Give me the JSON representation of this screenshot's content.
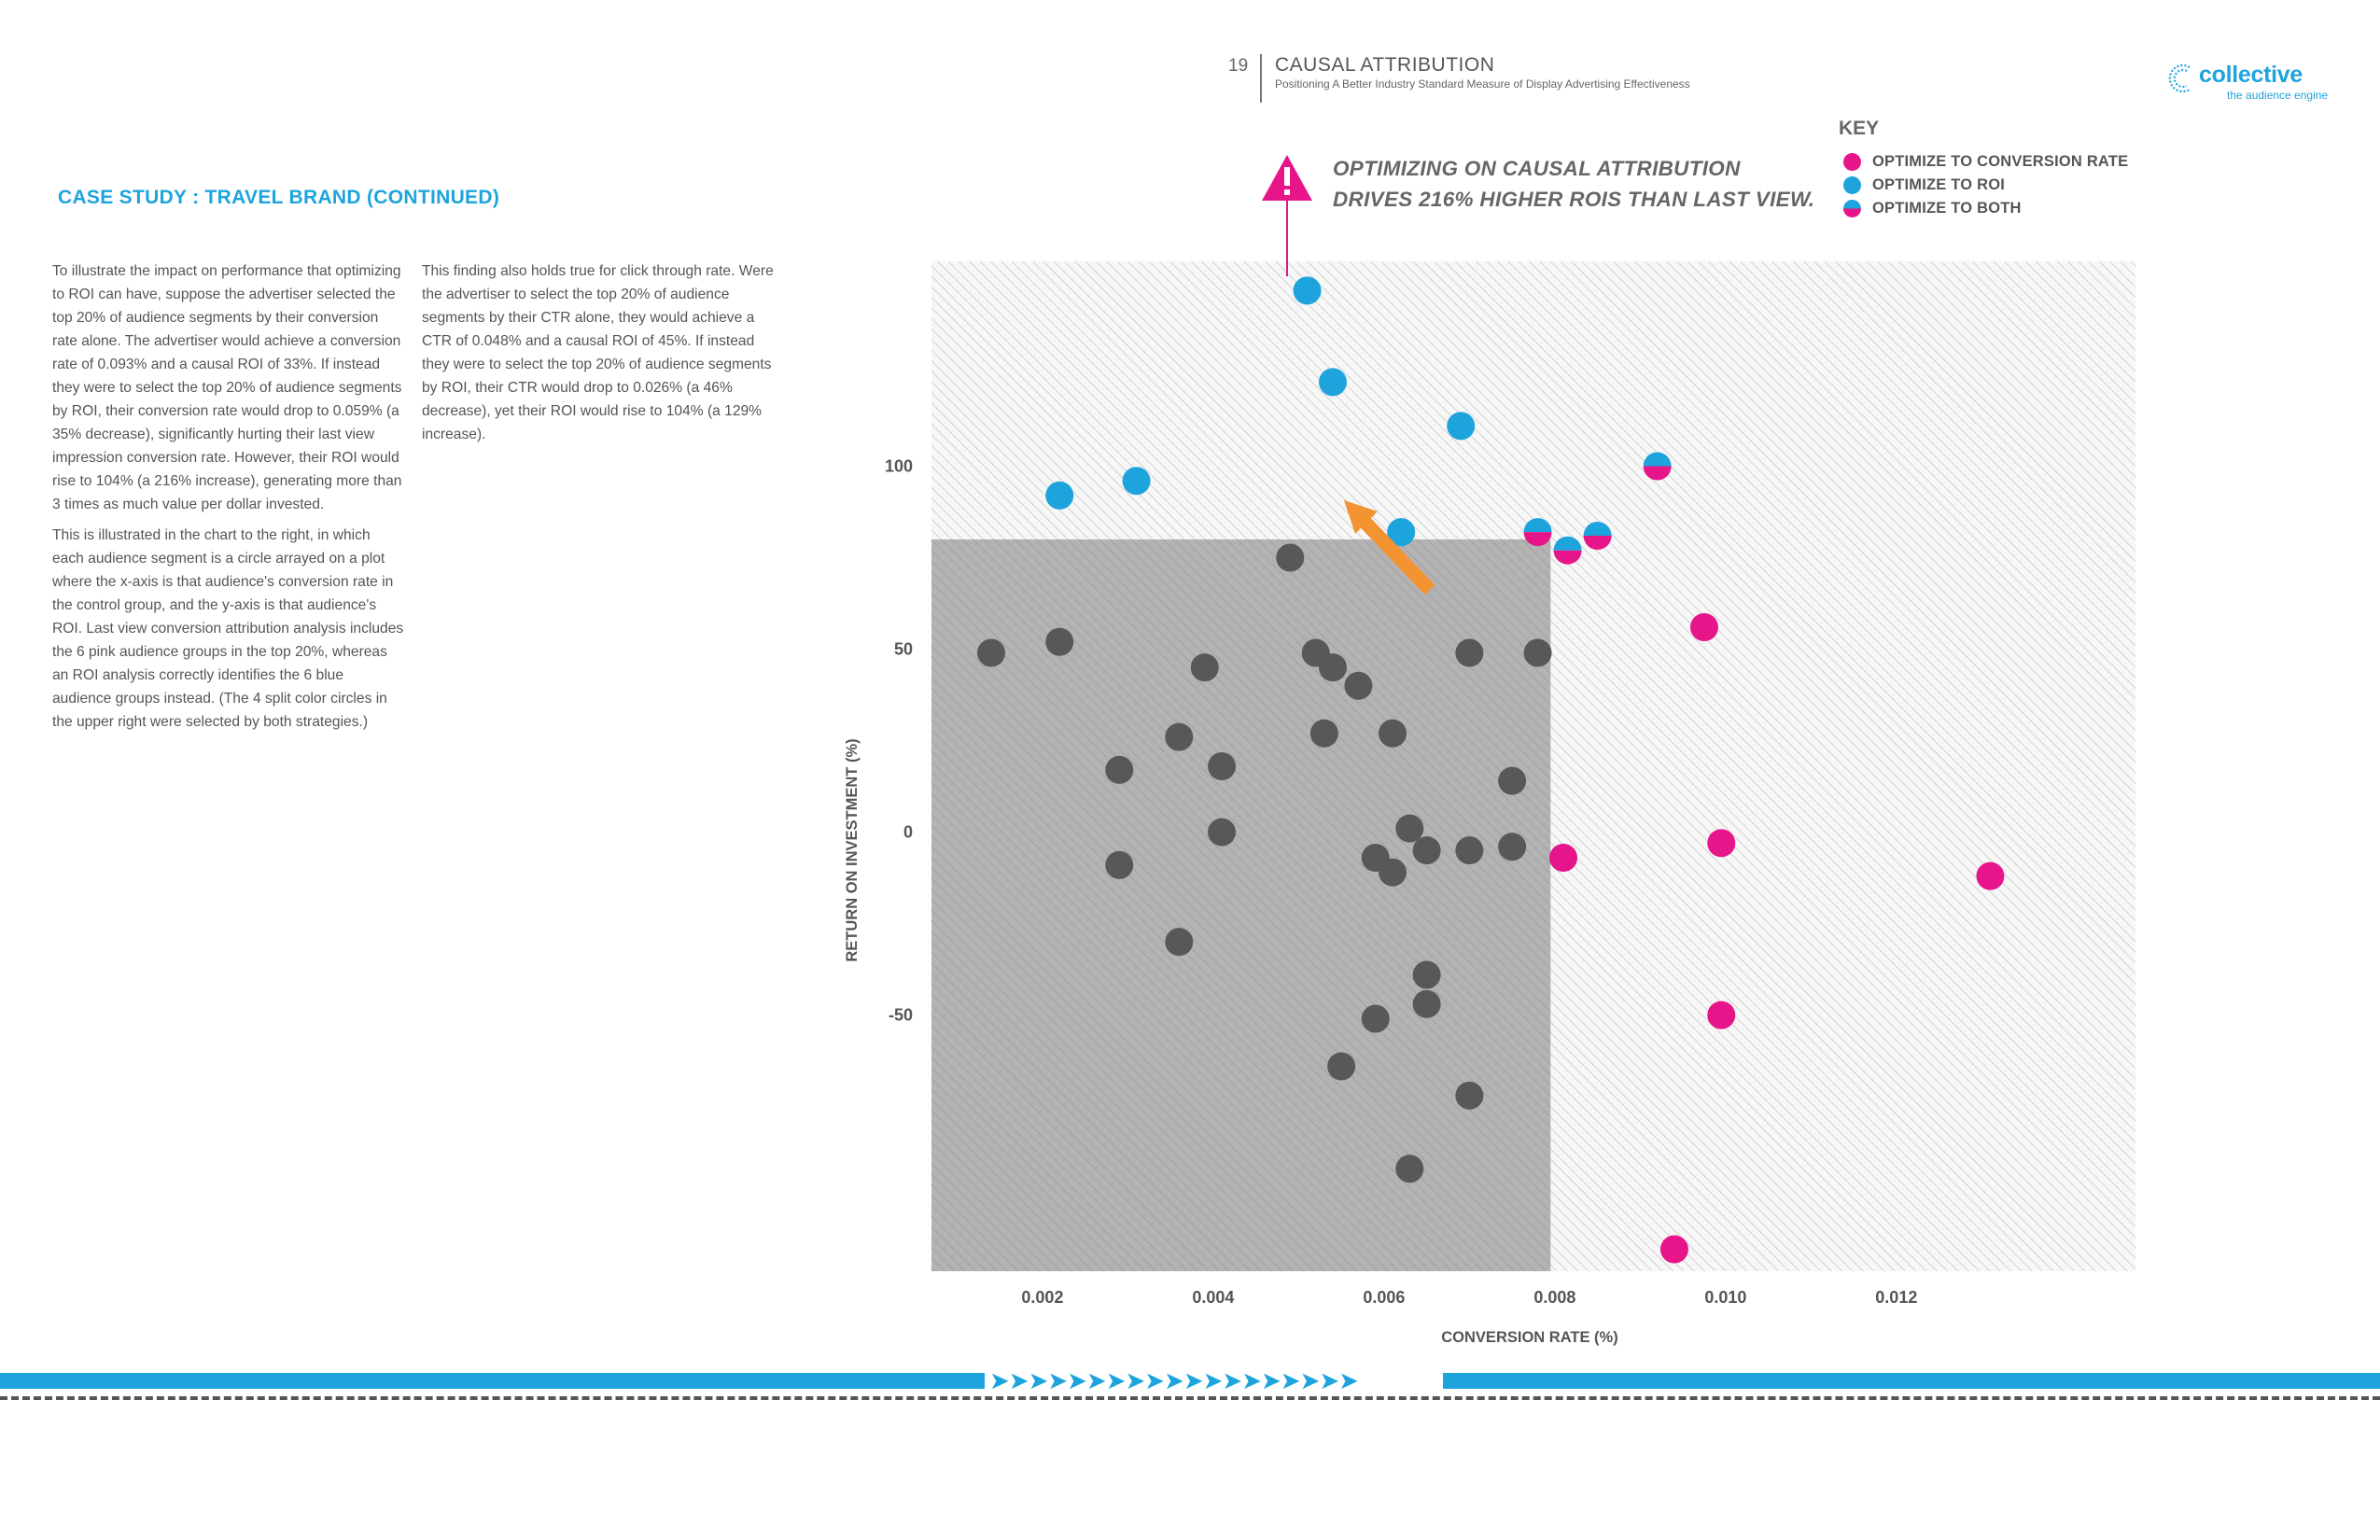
{
  "header": {
    "page_number": "19",
    "title": "CAUSAL ATTRIBUTION",
    "subtitle": "Positioning A Better Industry Standard Measure of Display Advertising Effectiveness"
  },
  "logo": {
    "name": "collective",
    "tagline": "the audience engine"
  },
  "section_heading": "CASE STUDY : TRAVEL BRAND  (CONTINUED)",
  "body": {
    "col1_p1": "To illustrate the impact on performance that optimizing to ROI can have, suppose the advertiser selected the top 20% of audience segments by their conversion rate alone. The advertiser would achieve a conversion rate of 0.093% and a causal ROI of 33%. If instead they were to select the top 20% of audience segments by ROI, their conversion rate would drop to 0.059% (a 35% decrease), significantly hurting their last view impression conversion rate. However, their ROI would rise to 104% (a 216% increase), generating more than 3 times as much value per dollar invested.",
    "col1_p2": "This is illustrated in the chart to the right, in which each audience segment is a circle arrayed on a plot where the x-axis is that audience's conversion rate in the control group, and the y-axis is that audience's ROI. Last view conversion attribution analysis includes the 6 pink audience groups in the top 20%, whereas an ROI analysis correctly identifies the 6 blue audience groups instead. (The 4 split color circles in the upper right were selected by both strategies.)",
    "col2_p1": "This finding also holds true for click through rate. Were the advertiser to select the top 20% of audience segments by their CTR alone, they would achieve a CTR of 0.048% and a causal ROI of 45%. If instead they were to select the top 20% of audience segments by ROI, their CTR would drop to 0.026% (a 46% decrease), yet their ROI would rise to 104% (a 129% increase)."
  },
  "callout": {
    "line1": "OPTIMIZING ON CAUSAL ATTRIBUTION",
    "line2": "DRIVES 216% HIGHER ROIS THAN LAST VIEW."
  },
  "key": {
    "title": "KEY",
    "items": [
      {
        "label": "OPTIMIZE TO  CONVERSION RATE",
        "type": "conversion"
      },
      {
        "label": "OPTIMIZE TO ROI",
        "type": "roi"
      },
      {
        "label": "OPTIMIZE TO BOTH",
        "type": "both"
      }
    ]
  },
  "colors": {
    "pink": "#e6158a",
    "blue": "#1ea4dd",
    "gray": "#58585a",
    "orange": "#f39332",
    "shaded": "#a8a8a8"
  },
  "icons": [
    "warning-triangle-icon",
    "arrow-icon",
    "chevron-right-icon"
  ],
  "chart_data": {
    "type": "scatter",
    "xlabel": "CONVERSION RATE (%)",
    "ylabel": "RETURN ON INVESTMENT (%)",
    "xlim": [
      0.0007,
      0.0148
    ],
    "ylim": [
      -120,
      156
    ],
    "x_ticks": [
      {
        "value": 0.002,
        "label": "0.002"
      },
      {
        "value": 0.004,
        "label": "0.004"
      },
      {
        "value": 0.006,
        "label": "0.006"
      },
      {
        "value": 0.008,
        "label": "0.008"
      },
      {
        "value": 0.01,
        "label": "0.010"
      },
      {
        "value": 0.012,
        "label": "0.012"
      }
    ],
    "y_ticks": [
      {
        "value": 100,
        "label": "100"
      },
      {
        "value": 50,
        "label": "50"
      },
      {
        "value": 0,
        "label": "0"
      },
      {
        "value": -50,
        "label": "-50"
      }
    ],
    "shaded_region": {
      "x_max": 0.00795,
      "y_max": 80
    },
    "series": [
      {
        "name": "OPTIMIZE TO  CONVERSION RATE",
        "category": "conversion",
        "points": [
          [
            0.00975,
            56
          ],
          [
            0.00995,
            -3
          ],
          [
            0.00995,
            -50
          ],
          [
            0.0131,
            -12
          ],
          [
            0.0094,
            -114
          ],
          [
            0.0081,
            -7
          ]
        ]
      },
      {
        "name": "OPTIMIZE TO ROI",
        "category": "roi",
        "points": [
          [
            0.0051,
            148
          ],
          [
            0.0054,
            123
          ],
          [
            0.0069,
            111
          ],
          [
            0.0022,
            92
          ],
          [
            0.0031,
            96
          ],
          [
            0.0062,
            82
          ]
        ]
      },
      {
        "name": "OPTIMIZE TO BOTH",
        "category": "both",
        "points": [
          [
            0.0092,
            100
          ],
          [
            0.0078,
            82
          ],
          [
            0.00815,
            77
          ],
          [
            0.0085,
            81
          ]
        ]
      },
      {
        "name": "",
        "category": "other",
        "points": [
          [
            0.0014,
            49
          ],
          [
            0.0022,
            52
          ],
          [
            0.0049,
            75
          ],
          [
            0.0052,
            49
          ],
          [
            0.0054,
            45
          ],
          [
            0.0057,
            40
          ],
          [
            0.007,
            49
          ],
          [
            0.0078,
            49
          ],
          [
            0.0039,
            45
          ],
          [
            0.0036,
            26
          ],
          [
            0.0041,
            18
          ],
          [
            0.0029,
            17
          ],
          [
            0.0053,
            27
          ],
          [
            0.0061,
            27
          ],
          [
            0.0075,
            14
          ],
          [
            0.0063,
            1
          ],
          [
            0.0059,
            -7
          ],
          [
            0.0061,
            -11
          ],
          [
            0.0065,
            -5
          ],
          [
            0.007,
            -5
          ],
          [
            0.0075,
            -4
          ],
          [
            0.0041,
            0
          ],
          [
            0.0029,
            -9
          ],
          [
            0.0036,
            -30
          ],
          [
            0.0065,
            -39
          ],
          [
            0.0065,
            -47
          ],
          [
            0.0059,
            -51
          ],
          [
            0.0055,
            -64
          ],
          [
            0.007,
            -72
          ],
          [
            0.0063,
            -92
          ]
        ]
      }
    ]
  }
}
